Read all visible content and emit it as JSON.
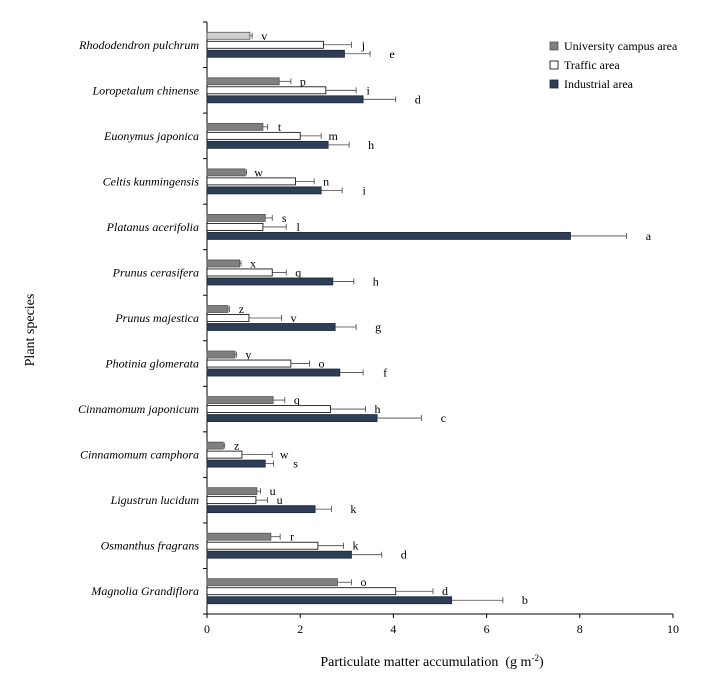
{
  "chart_data": {
    "type": "bar",
    "orientation": "horizontal",
    "xlabel": "Particulate matter accumulation  (g m",
    "xlabel_sup": "-2",
    "xlabel_close": ")",
    "ylabel": "Plant species",
    "xlim": [
      0,
      10
    ],
    "xticks": [
      "0",
      "2",
      "4",
      "6",
      "8",
      "10"
    ],
    "legend_position": "top-right",
    "categories": [
      "Rhododendron pulchrum",
      "Loropetalum chinense",
      "Euonymus japonica",
      "Celtis kunmingensis",
      "Platanus acerifolia",
      "Prunus cerasifera",
      "Prunus majestica",
      "Photinia glomerata",
      "Cinnamomum japonicum",
      "Cinnamomum camphora",
      "Ligustrun lucidum",
      "Osmanthus fragrans",
      "Magnolia Grandiflora"
    ],
    "series": [
      {
        "name": "University campus area",
        "color": "#7f7f7f",
        "top_color": "#cfcfcf",
        "values": [
          0.92,
          1.55,
          1.2,
          0.82,
          1.25,
          0.7,
          0.45,
          0.6,
          1.42,
          0.35,
          1.07,
          1.37,
          2.8
        ],
        "errors": [
          0.05,
          0.25,
          0.1,
          0.03,
          0.15,
          0.03,
          0.03,
          0.03,
          0.25,
          0.03,
          0.08,
          0.2,
          0.3
        ],
        "labels": [
          "v",
          "p",
          "t",
          "w",
          "s",
          "x",
          "z",
          "y",
          "q",
          "z",
          "u",
          "r",
          "o"
        ]
      },
      {
        "name": "Traffic area",
        "color": "#ffffff",
        "values": [
          2.5,
          2.55,
          2.0,
          1.9,
          1.2,
          1.4,
          0.9,
          1.8,
          2.65,
          0.75,
          1.05,
          2.38,
          4.05
        ],
        "errors": [
          0.6,
          0.65,
          0.45,
          0.4,
          0.5,
          0.3,
          0.7,
          0.4,
          0.75,
          0.65,
          0.25,
          0.55,
          0.8
        ],
        "labels": [
          "j",
          "i",
          "m",
          "n",
          "l",
          "q",
          "v",
          "o",
          "h",
          "w",
          "u",
          "k",
          "d"
        ]
      },
      {
        "name": "Industrial area",
        "color": "#2e3e56",
        "values": [
          2.95,
          3.35,
          2.6,
          2.45,
          7.8,
          2.7,
          2.75,
          2.85,
          3.65,
          1.25,
          2.32,
          3.1,
          5.25
        ],
        "errors": [
          0.55,
          0.7,
          0.45,
          0.45,
          1.2,
          0.45,
          0.45,
          0.5,
          0.95,
          0.18,
          0.35,
          0.65,
          1.1
        ],
        "labels": [
          "e",
          "d",
          "h",
          "i",
          "a",
          "h",
          "g",
          "f",
          "c",
          "s",
          "k",
          "d",
          "b"
        ]
      }
    ]
  }
}
